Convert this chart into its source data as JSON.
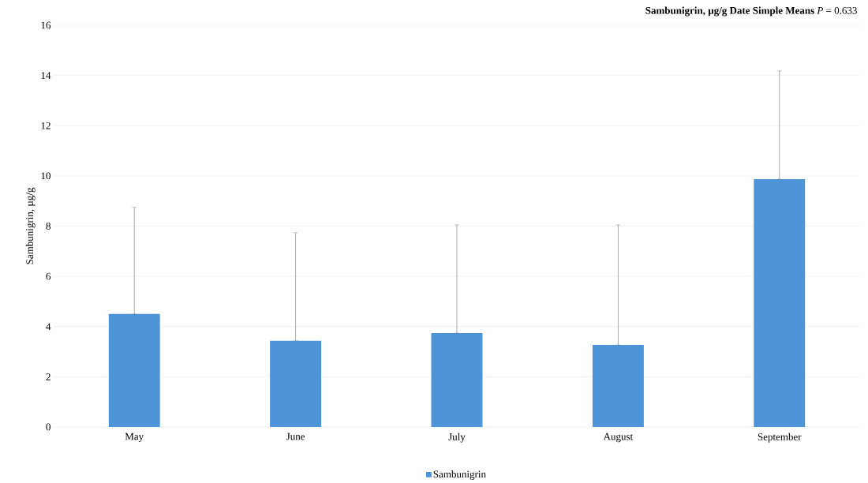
{
  "chart_data": {
    "type": "bar",
    "title": "**Sambunigrin, µg/g Date Simple Means** *P* = 0.633",
    "ylabel": "Sambunigrin, µg/g",
    "categories": [
      "May",
      "June",
      "July",
      "August",
      "September"
    ],
    "series": [
      {
        "name": "Sambunigrin",
        "color": "#4e94d9",
        "values": [
          4.5,
          3.43,
          3.74,
          3.27,
          9.87
        ],
        "errors": [
          [
            4.5,
            8.75
          ],
          [
            3.43,
            7.74
          ],
          [
            3.74,
            8.05
          ],
          [
            3.27,
            8.05
          ],
          [
            9.87,
            14.18
          ]
        ]
      }
    ],
    "ylim": [
      0,
      16
    ],
    "yticks": [
      0,
      2,
      4,
      6,
      8,
      10,
      12,
      14,
      16
    ],
    "grid": "y",
    "legend": "bottom"
  }
}
